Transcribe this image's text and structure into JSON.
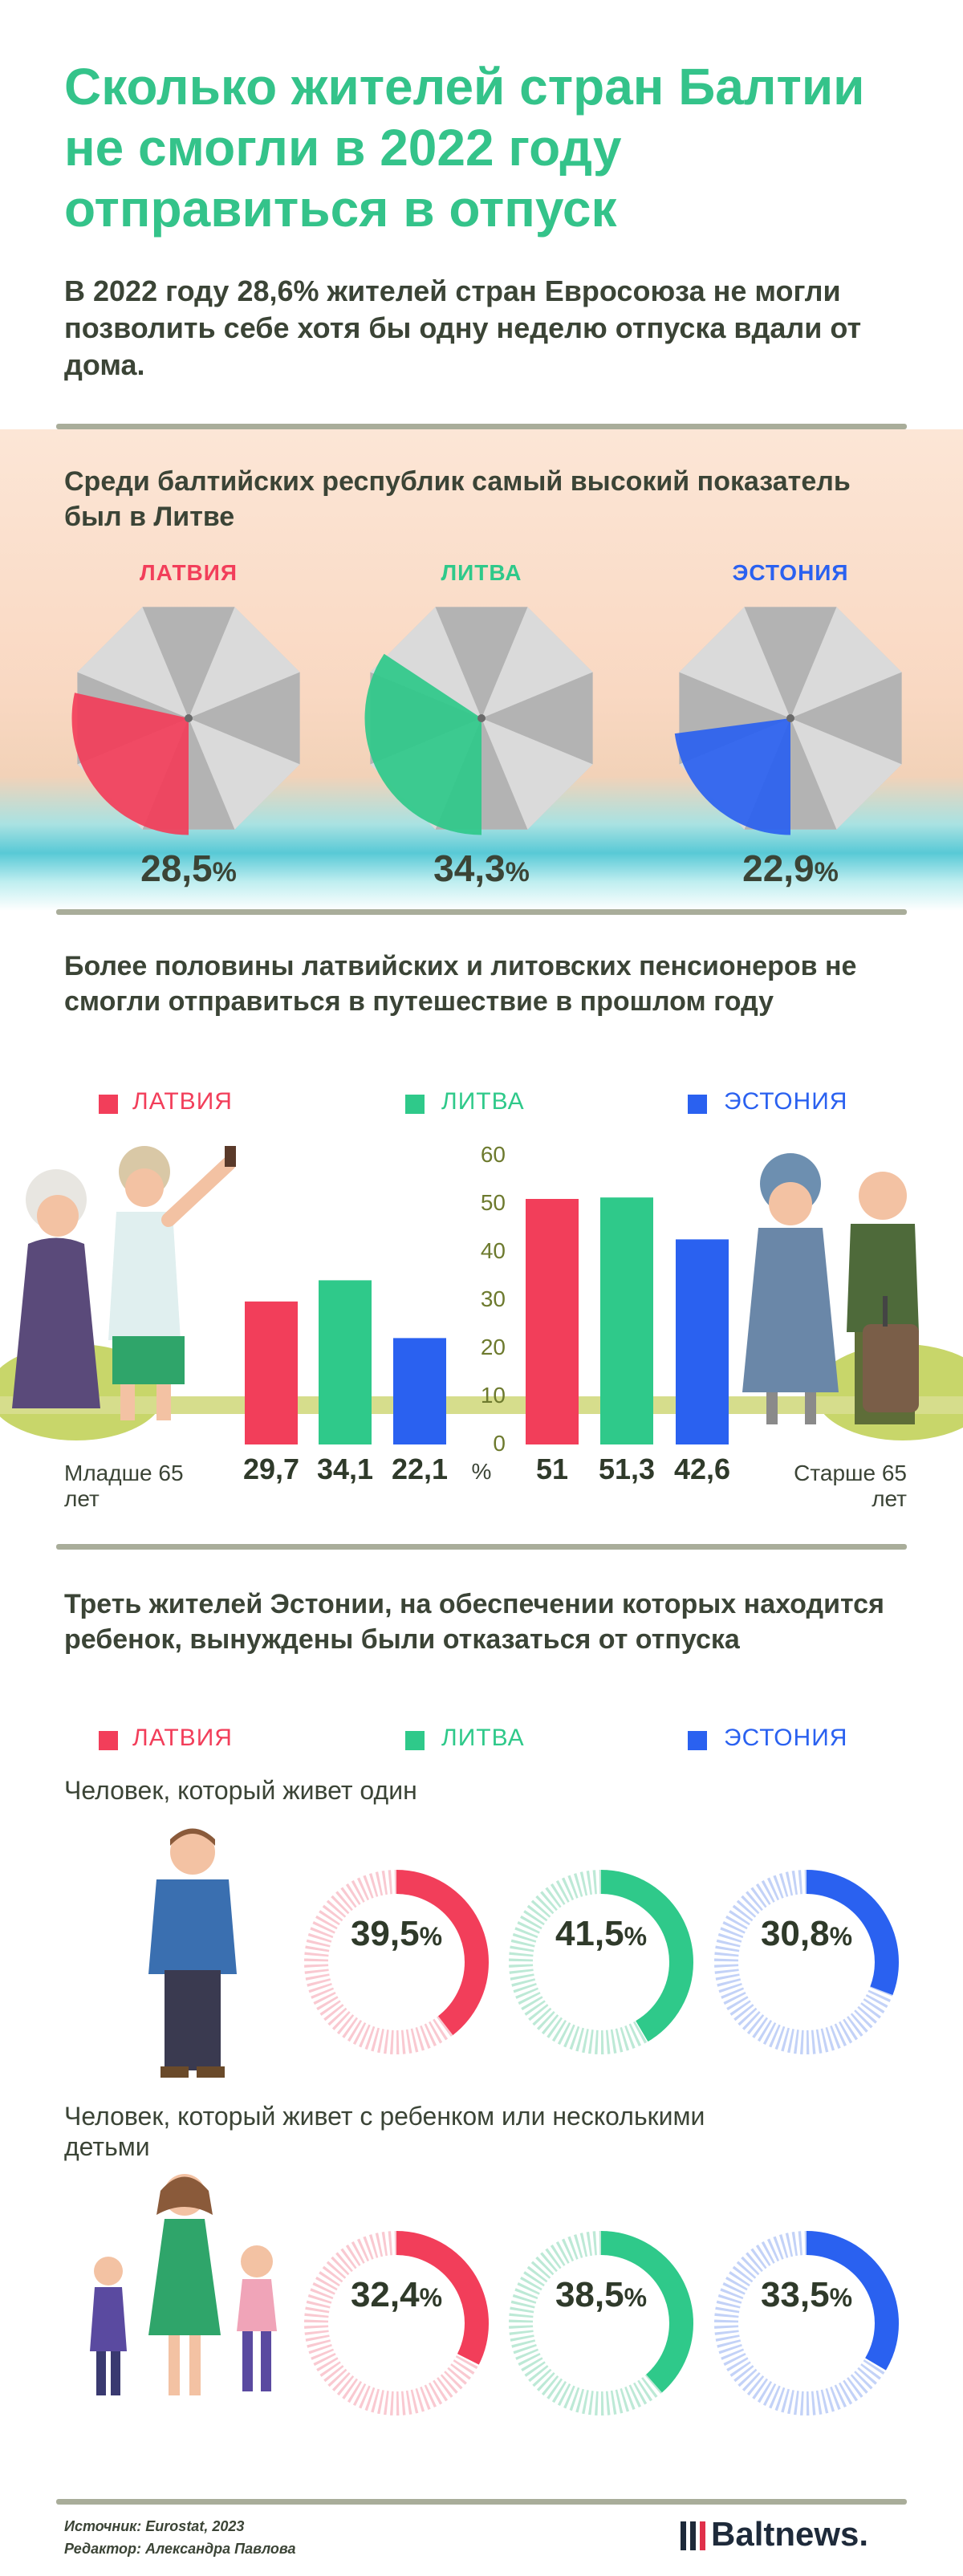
{
  "title": "Сколько жителей стран Балтии не смогли в 2022 году отправиться в отпуск",
  "lead": "В 2022 году 28,6% жителей стран Евросоюза не могли позволить себе хотя бы одну неделю отпуска вдали от дома.",
  "colors": {
    "latvia": "#f23e5a",
    "lithuania": "#2fc98a",
    "estonia": "#2a61f0",
    "gray": "#c6c6c6"
  },
  "section1": {
    "heading": "Среди балтийских республик самый высокий показатель был в Литве",
    "items": [
      {
        "country": "ЛАТВИЯ",
        "value": "28,5",
        "pct": "%"
      },
      {
        "country": "ЛИТВА",
        "value": "34,3",
        "pct": "%"
      },
      {
        "country": "ЭСТОНИЯ",
        "value": "22,9",
        "pct": "%"
      }
    ]
  },
  "section2": {
    "heading": "Более половины латвийских и литовских пенсионеров не смогли отправиться в путешествие в прошлом году",
    "legend": [
      "ЛАТВИЯ",
      "ЛИТВА",
      "ЭСТОНИЯ"
    ],
    "left_label": "Младше 65 лет",
    "right_label": "Старше 65 лет",
    "unit": "%",
    "ticks": [
      "60",
      "50",
      "40",
      "30",
      "20",
      "10",
      "0"
    ]
  },
  "section3": {
    "heading": "Треть жителей Эстонии, на обеспечении которых находится ребенок, вынуждены были отказаться от отпуска",
    "legend": [
      "ЛАТВИЯ",
      "ЛИТВА",
      "ЭСТОНИЯ"
    ],
    "row1_label": "Человек, который живет один",
    "row2_label": "Человек, который живет с ребенком или несколькими детьми",
    "row1": [
      {
        "value": "39,5",
        "pct": "%"
      },
      {
        "value": "41,5",
        "pct": "%"
      },
      {
        "value": "30,8",
        "pct": "%"
      }
    ],
    "row2": [
      {
        "value": "32,4",
        "pct": "%"
      },
      {
        "value": "38,5",
        "pct": "%"
      },
      {
        "value": "33,5",
        "pct": "%"
      }
    ]
  },
  "footer": {
    "source": "Источник: Eurostat, 2023",
    "editor": "Редактор: Александра Павлова",
    "logo": "Baltnews."
  },
  "chart_data": [
    {
      "type": "pie",
      "categories": [
        "ЛАТВИЯ",
        "ЛИТВА",
        "ЭСТОНИЯ"
      ],
      "values": [
        28.5,
        34.3,
        22.9
      ],
      "title": "Среди балтийских республик самый высокий показатель был в Литве"
    },
    {
      "type": "bar",
      "categories": [
        "Младше 65 лет",
        "Старше 65 лет"
      ],
      "series": [
        {
          "name": "ЛАТВИЯ",
          "values": [
            29.7,
            51
          ]
        },
        {
          "name": "ЛИТВА",
          "values": [
            34.1,
            51.3
          ]
        },
        {
          "name": "ЭСТОНИЯ",
          "values": [
            22.1,
            42.6
          ]
        }
      ],
      "value_labels": [
        [
          "29,7",
          "51"
        ],
        [
          "34,1",
          "51,3"
        ],
        [
          "22,1",
          "42,6"
        ]
      ],
      "title": "Более половины латвийских и литовских пенсионеров не смогли отправиться в путешествие в прошлом году",
      "ylabel": "%",
      "ylim": [
        0,
        60
      ],
      "grid": false
    },
    {
      "type": "pie",
      "categories": [
        "Человек, который живет один",
        "Человек, который живет с ребенком или несколькими детьми"
      ],
      "series": [
        {
          "name": "ЛАТВИЯ",
          "values": [
            39.5,
            32.4
          ]
        },
        {
          "name": "ЛИТВА",
          "values": [
            41.5,
            38.5
          ]
        },
        {
          "name": "ЭСТОНИЯ",
          "values": [
            30.8,
            33.5
          ]
        }
      ],
      "title": "Треть жителей Эстонии, на обеспечении которых находится ребенок, вынуждены были отказаться от отпуска"
    }
  ]
}
